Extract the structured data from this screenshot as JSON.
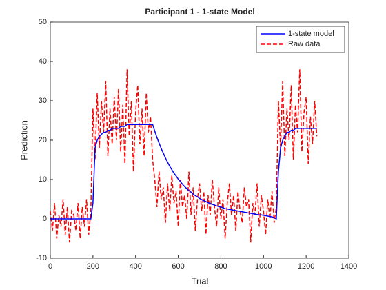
{
  "chart_data": {
    "type": "line",
    "title": "Participant 1 - 1-state Model",
    "xlabel": "Trial",
    "ylabel": "Prediction",
    "x": [
      0,
      10,
      20,
      30,
      40,
      50,
      60,
      70,
      80,
      90,
      100,
      110,
      120,
      130,
      140,
      150,
      160,
      170,
      180,
      190,
      200,
      210,
      220,
      230,
      240,
      250,
      260,
      270,
      280,
      290,
      300,
      310,
      320,
      330,
      340,
      350,
      360,
      370,
      380,
      390,
      400,
      410,
      420,
      430,
      440,
      450,
      460,
      470,
      480,
      490,
      500,
      510,
      520,
      530,
      540,
      550,
      560,
      570,
      580,
      590,
      600,
      610,
      620,
      630,
      640,
      650,
      660,
      670,
      680,
      690,
      700,
      710,
      720,
      730,
      740,
      750,
      760,
      770,
      780,
      790,
      800,
      810,
      820,
      830,
      840,
      850,
      860,
      870,
      880,
      890,
      900,
      910,
      920,
      930,
      940,
      950,
      960,
      970,
      980,
      990,
      1000,
      1010,
      1020,
      1030,
      1040,
      1050,
      1060,
      1070,
      1080,
      1090,
      1100,
      1110,
      1120,
      1130,
      1140,
      1150,
      1160,
      1170,
      1180,
      1190,
      1200,
      1210,
      1220,
      1230,
      1240,
      1250
    ],
    "series": [
      {
        "name": "1-state model",
        "color": "#0000ff",
        "dash": false,
        "values": [
          0,
          0,
          0,
          0,
          0,
          0,
          0,
          0,
          0,
          0,
          0,
          0,
          0,
          0,
          0,
          0,
          0,
          0,
          0,
          0,
          4,
          18,
          20,
          21,
          21.5,
          22,
          22,
          22.5,
          22.5,
          23,
          23,
          23,
          23,
          23.5,
          23.5,
          23.5,
          24,
          24,
          24,
          24,
          24,
          24,
          24,
          24,
          24,
          24,
          24,
          24,
          24,
          22.3,
          20.7,
          19.3,
          17.9,
          16.7,
          15.5,
          14.4,
          13.4,
          12.5,
          11.6,
          10.9,
          10.1,
          9.5,
          8.8,
          8.2,
          7.7,
          7.2,
          6.8,
          6.3,
          5.9,
          5.6,
          5.2,
          4.9,
          4.6,
          4.4,
          4.1,
          3.9,
          3.7,
          3.5,
          3.3,
          3.1,
          3.0,
          2.8,
          2.6,
          2.5,
          2.4,
          2.3,
          2.2,
          2.1,
          2.0,
          1.9,
          1.8,
          1.7,
          1.6,
          1.5,
          1.4,
          1.3,
          1.2,
          1.1,
          1.0,
          1.0,
          0.9,
          0.8,
          0.7,
          0.6,
          0.5,
          0.3,
          0,
          12,
          18,
          20,
          21,
          22,
          22,
          22.5,
          22.5,
          23,
          23,
          23,
          23,
          23,
          23,
          23,
          23,
          23,
          23,
          23
        ]
      },
      {
        "name": "Raw data",
        "color": "#ff0000",
        "dash": true,
        "values": [
          2,
          -3,
          4,
          -5,
          1,
          -2,
          5,
          -4,
          3,
          -6,
          2,
          1,
          -3,
          4,
          -5,
          3,
          -2,
          5,
          -4,
          2,
          28,
          15,
          32,
          18,
          30,
          22,
          35,
          16,
          28,
          19,
          31,
          20,
          33,
          17,
          29,
          14,
          38,
          21,
          30,
          12,
          27,
          34,
          19,
          28,
          16,
          32,
          22,
          26,
          15,
          10,
          3,
          12,
          5,
          8,
          -1,
          9,
          2,
          11,
          4,
          7,
          -2,
          10,
          3,
          6,
          0,
          12,
          1,
          8,
          -3,
          5,
          9,
          2,
          7,
          -4,
          6,
          1,
          10,
          3,
          -2,
          8,
          0,
          5,
          -5,
          4,
          9,
          1,
          6,
          -3,
          7,
          2,
          -1,
          8,
          3,
          5,
          -6,
          4,
          1,
          9,
          -2,
          6,
          2,
          -4,
          5,
          0,
          7,
          -1,
          3,
          30,
          18,
          35,
          16,
          28,
          20,
          34,
          15,
          29,
          22,
          38,
          17,
          27,
          31,
          14,
          26,
          19,
          30,
          21
        ]
      }
    ],
    "xlim": [
      0,
      1400
    ],
    "xticks": [
      0,
      200,
      400,
      600,
      800,
      1000,
      1200,
      1400
    ],
    "ylim": [
      -10,
      50
    ],
    "yticks": [
      -10,
      0,
      10,
      20,
      30,
      40,
      50
    ],
    "legend": "northeast",
    "grid": false
  }
}
